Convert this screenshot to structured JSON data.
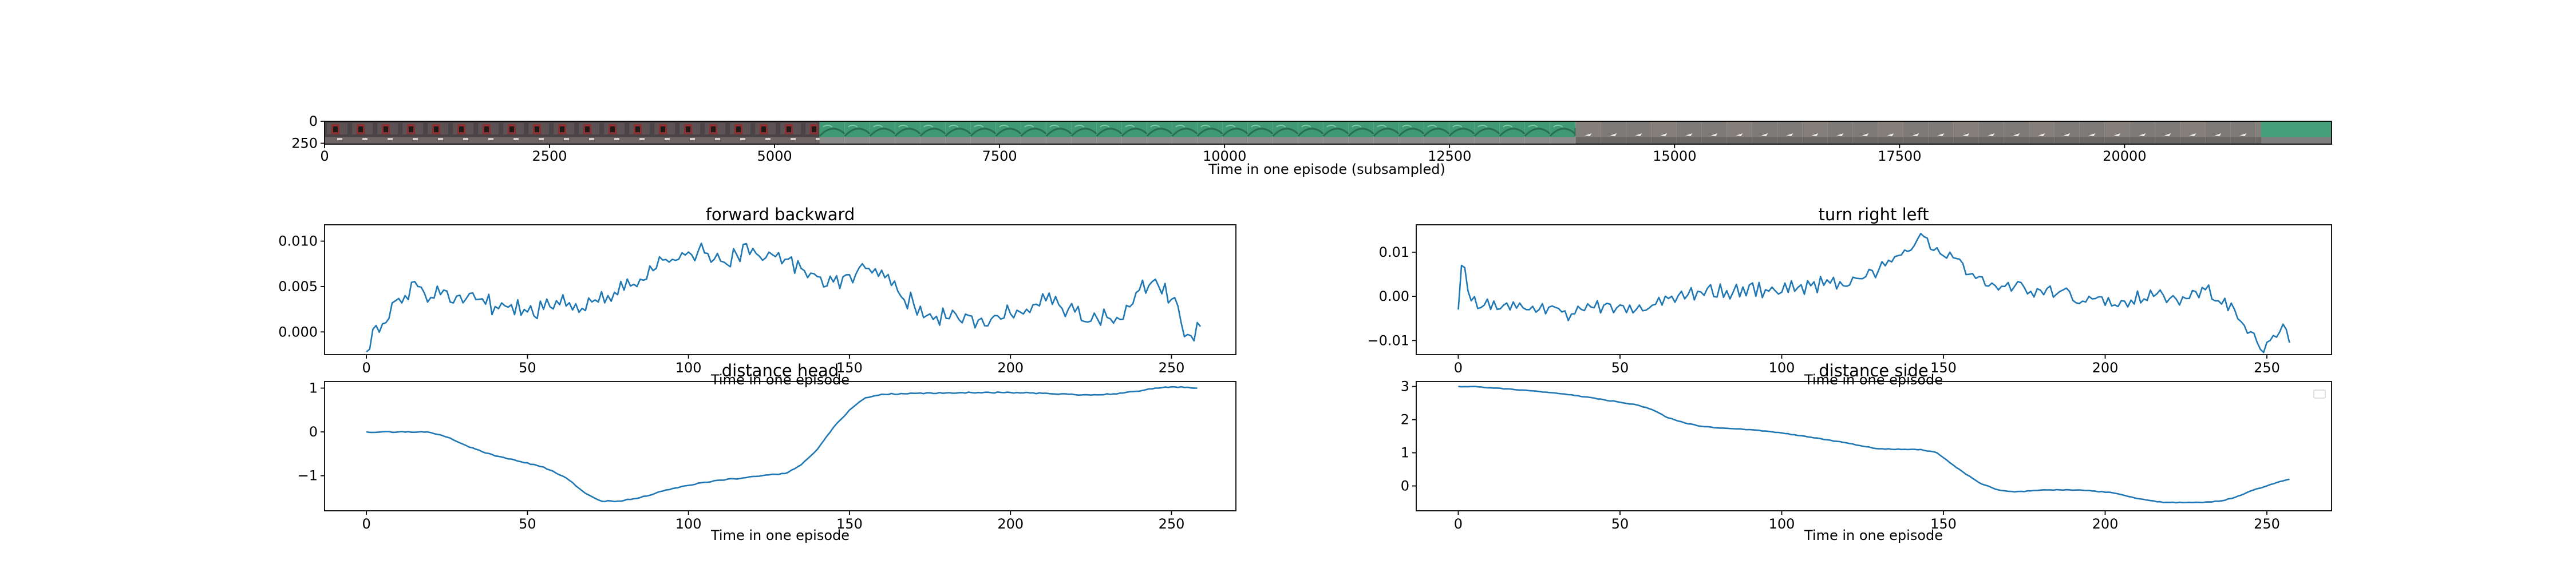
{
  "figure": {
    "background": "#ffffff",
    "line_color": "#1f77b4"
  },
  "filmstrip": {
    "xlabel": "Time in one episode (subsampled)",
    "xticks": [
      0,
      2500,
      5000,
      7500,
      10000,
      12500,
      15000,
      17500,
      20000
    ],
    "yticks": [
      0,
      250
    ],
    "xlim": [
      0,
      22300
    ],
    "ylim_inverted": [
      0,
      260
    ],
    "segments": [
      {
        "name": "dark-room-with-red-objects",
        "start": 0,
        "end": 5500,
        "colors": [
          "#4a4446",
          "#8a3030",
          "#d8d0cc"
        ]
      },
      {
        "name": "green-floor-sky",
        "start": 5500,
        "end": 13900,
        "colors": [
          "#3f9a74",
          "#2a6e52",
          "#8c8c8c"
        ]
      },
      {
        "name": "grey-room-with-white-objects",
        "start": 13900,
        "end": 22300,
        "colors": [
          "#7e7a78",
          "#f2f2f2",
          "#4d9c78"
        ]
      }
    ]
  },
  "chart_data": [
    {
      "type": "line",
      "title": "forward backward",
      "xlabel": "Time in one episode",
      "ylabel": "",
      "xlim": [
        -13,
        270
      ],
      "ylim": [
        -0.0025,
        0.0118
      ],
      "xticks": [
        0,
        50,
        100,
        150,
        200,
        250
      ],
      "yticks": [
        0.0,
        0.005,
        0.01
      ],
      "ytick_labels": [
        "0.000",
        "0.005",
        "0.010"
      ],
      "grid": false,
      "anchors": [
        [
          0,
          -0.0022
        ],
        [
          2,
          0.0003
        ],
        [
          5,
          0.0009
        ],
        [
          8,
          0.0032
        ],
        [
          12,
          0.004
        ],
        [
          16,
          0.005
        ],
        [
          20,
          0.0038
        ],
        [
          25,
          0.0045
        ],
        [
          30,
          0.0032
        ],
        [
          35,
          0.0036
        ],
        [
          40,
          0.0028
        ],
        [
          45,
          0.003
        ],
        [
          50,
          0.0022
        ],
        [
          55,
          0.0025
        ],
        [
          60,
          0.003
        ],
        [
          65,
          0.0031
        ],
        [
          70,
          0.0033
        ],
        [
          75,
          0.004
        ],
        [
          80,
          0.0046
        ],
        [
          85,
          0.0058
        ],
        [
          90,
          0.007
        ],
        [
          95,
          0.008
        ],
        [
          100,
          0.0088
        ],
        [
          105,
          0.0087
        ],
        [
          110,
          0.0078
        ],
        [
          115,
          0.0085
        ],
        [
          120,
          0.0092
        ],
        [
          125,
          0.0088
        ],
        [
          130,
          0.008
        ],
        [
          135,
          0.007
        ],
        [
          140,
          0.0061
        ],
        [
          145,
          0.0055
        ],
        [
          150,
          0.0063
        ],
        [
          155,
          0.007
        ],
        [
          160,
          0.0068
        ],
        [
          165,
          0.0045
        ],
        [
          170,
          0.003
        ],
        [
          175,
          0.002
        ],
        [
          180,
          0.0015
        ],
        [
          185,
          0.001
        ],
        [
          190,
          0.0013
        ],
        [
          195,
          0.0018
        ],
        [
          200,
          0.002
        ],
        [
          205,
          0.0025
        ],
        [
          210,
          0.0042
        ],
        [
          215,
          0.003
        ],
        [
          220,
          0.0022
        ],
        [
          225,
          0.0012
        ],
        [
          230,
          0.0016
        ],
        [
          235,
          0.0014
        ],
        [
          240,
          0.0046
        ],
        [
          245,
          0.0058
        ],
        [
          250,
          0.0036
        ],
        [
          253,
          0.001
        ],
        [
          256,
          -0.0004
        ],
        [
          259,
          0.0006
        ]
      ],
      "noise": 0.0011
    },
    {
      "type": "line",
      "title": "turn right left",
      "xlabel": "Time in one episode",
      "ylabel": "",
      "xlim": [
        -13,
        270
      ],
      "ylim": [
        -0.0132,
        0.0162
      ],
      "xticks": [
        0,
        50,
        100,
        150,
        200,
        250
      ],
      "yticks": [
        -0.01,
        0.0,
        0.01
      ],
      "ytick_labels": [
        "−0.01",
        "0.00",
        "0.01"
      ],
      "grid": false,
      "anchors": [
        [
          0,
          -0.003
        ],
        [
          1,
          0.007
        ],
        [
          2,
          0.0065
        ],
        [
          4,
          -0.001
        ],
        [
          8,
          -0.002
        ],
        [
          15,
          -0.0015
        ],
        [
          25,
          -0.003
        ],
        [
          35,
          -0.004
        ],
        [
          45,
          -0.002
        ],
        [
          55,
          -0.003
        ],
        [
          60,
          -0.002
        ],
        [
          65,
          -0.0005
        ],
        [
          75,
          0.001
        ],
        [
          85,
          0.001
        ],
        [
          95,
          0.0015
        ],
        [
          105,
          0.002
        ],
        [
          115,
          0.003
        ],
        [
          125,
          0.004
        ],
        [
          130,
          0.006
        ],
        [
          135,
          0.009
        ],
        [
          140,
          0.0105
        ],
        [
          144,
          0.0135
        ],
        [
          148,
          0.011
        ],
        [
          152,
          0.01
        ],
        [
          158,
          0.005
        ],
        [
          165,
          0.003
        ],
        [
          175,
          0.002
        ],
        [
          185,
          0.0005
        ],
        [
          195,
          0.0
        ],
        [
          205,
          -0.001
        ],
        [
          215,
          0.0
        ],
        [
          225,
          -0.0005
        ],
        [
          230,
          0.002
        ],
        [
          235,
          -0.001
        ],
        [
          240,
          -0.003
        ],
        [
          245,
          -0.008
        ],
        [
          248,
          -0.012
        ],
        [
          251,
          -0.01
        ],
        [
          254,
          -0.008
        ],
        [
          256,
          -0.0075
        ],
        [
          257,
          -0.0105
        ]
      ],
      "noise": 0.0018
    },
    {
      "type": "line",
      "title": "distance head",
      "xlabel": "Time in one episode",
      "ylabel": "",
      "xlim": [
        -13,
        270
      ],
      "ylim": [
        -1.8,
        1.15
      ],
      "xticks": [
        0,
        50,
        100,
        150,
        200,
        250
      ],
      "yticks": [
        -1,
        0,
        1
      ],
      "ytick_labels": [
        "−1",
        "0",
        "1"
      ],
      "grid": false,
      "anchors": [
        [
          0,
          0.0
        ],
        [
          10,
          0.0
        ],
        [
          19,
          0.0
        ],
        [
          25,
          -0.12
        ],
        [
          32,
          -0.35
        ],
        [
          40,
          -0.55
        ],
        [
          48,
          -0.68
        ],
        [
          55,
          -0.8
        ],
        [
          62,
          -1.05
        ],
        [
          68,
          -1.4
        ],
        [
          73,
          -1.58
        ],
        [
          78,
          -1.58
        ],
        [
          85,
          -1.5
        ],
        [
          92,
          -1.35
        ],
        [
          100,
          -1.22
        ],
        [
          105,
          -1.15
        ],
        [
          110,
          -1.1
        ],
        [
          117,
          -1.05
        ],
        [
          125,
          -0.98
        ],
        [
          130,
          -0.95
        ],
        [
          135,
          -0.75
        ],
        [
          140,
          -0.4
        ],
        [
          145,
          0.1
        ],
        [
          150,
          0.5
        ],
        [
          155,
          0.78
        ],
        [
          160,
          0.86
        ],
        [
          170,
          0.88
        ],
        [
          180,
          0.89
        ],
        [
          190,
          0.9
        ],
        [
          200,
          0.9
        ],
        [
          210,
          0.88
        ],
        [
          220,
          0.85
        ],
        [
          225,
          0.84
        ],
        [
          232,
          0.87
        ],
        [
          240,
          0.93
        ],
        [
          245,
          1.0
        ],
        [
          250,
          1.03
        ],
        [
          255,
          1.02
        ],
        [
          258,
          1.0
        ]
      ],
      "noise": 0.012
    },
    {
      "type": "line",
      "title": "distance side",
      "xlabel": "Time in one episode",
      "ylabel": "",
      "xlim": [
        -13,
        270
      ],
      "ylim": [
        -0.75,
        3.15
      ],
      "xticks": [
        0,
        50,
        100,
        150,
        200,
        250
      ],
      "yticks": [
        0,
        1,
        2,
        3
      ],
      "ytick_labels": [
        "0",
        "1",
        "2",
        "3"
      ],
      "grid": false,
      "legend": "top-right, empty",
      "anchors": [
        [
          0,
          3.0
        ],
        [
          5,
          3.0
        ],
        [
          15,
          2.93
        ],
        [
          25,
          2.85
        ],
        [
          35,
          2.75
        ],
        [
          45,
          2.6
        ],
        [
          55,
          2.45
        ],
        [
          60,
          2.3
        ],
        [
          65,
          2.05
        ],
        [
          70,
          1.9
        ],
        [
          75,
          1.8
        ],
        [
          80,
          1.75
        ],
        [
          90,
          1.7
        ],
        [
          100,
          1.6
        ],
        [
          110,
          1.45
        ],
        [
          120,
          1.3
        ],
        [
          125,
          1.2
        ],
        [
          130,
          1.12
        ],
        [
          137,
          1.1
        ],
        [
          143,
          1.1
        ],
        [
          148,
          1.0
        ],
        [
          152,
          0.7
        ],
        [
          157,
          0.35
        ],
        [
          162,
          0.05
        ],
        [
          167,
          -0.12
        ],
        [
          172,
          -0.18
        ],
        [
          177,
          -0.15
        ],
        [
          182,
          -0.12
        ],
        [
          192,
          -0.12
        ],
        [
          202,
          -0.2
        ],
        [
          210,
          -0.38
        ],
        [
          218,
          -0.5
        ],
        [
          225,
          -0.5
        ],
        [
          230,
          -0.5
        ],
        [
          236,
          -0.45
        ],
        [
          240,
          -0.35
        ],
        [
          245,
          -0.15
        ],
        [
          250,
          0.0
        ],
        [
          253,
          0.1
        ],
        [
          257,
          0.2
        ]
      ],
      "noise": 0.01
    }
  ]
}
